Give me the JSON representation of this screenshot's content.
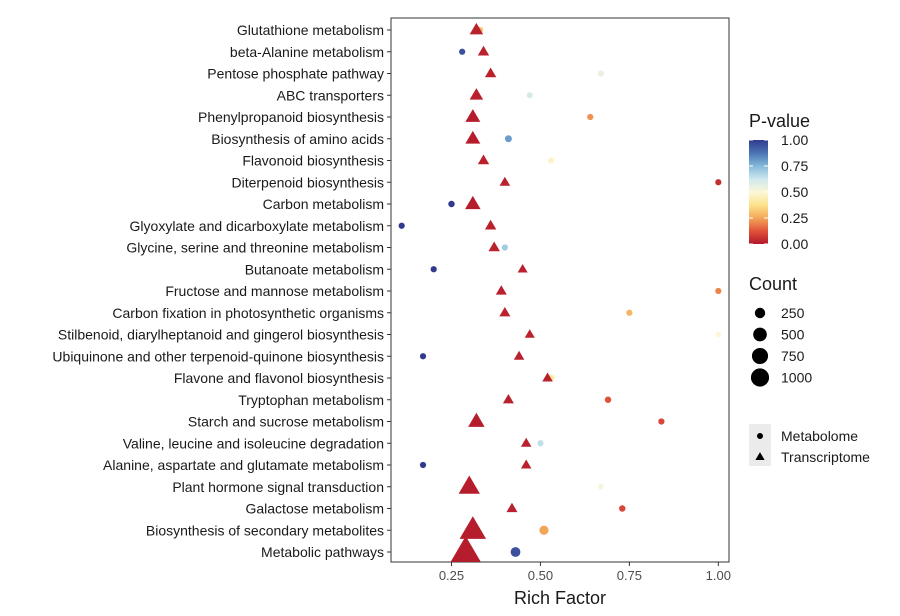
{
  "chart_data": {
    "type": "scatter",
    "xlabel": "Rich Factor",
    "ylabel": "",
    "xlim": [
      0.08,
      1.03
    ],
    "x_ticks": [
      0.25,
      0.5,
      0.75,
      1.0
    ],
    "x_tick_labels": [
      "0.25",
      "0.50",
      "0.75",
      "1.00"
    ],
    "grid": false,
    "categories": [
      "Glutathione metabolism",
      "beta-Alanine metabolism",
      "Pentose phosphate pathway",
      "ABC transporters",
      "Phenylpropanoid biosynthesis",
      "Biosynthesis of amino acids",
      "Flavonoid biosynthesis",
      "Diterpenoid biosynthesis",
      "Carbon metabolism",
      "Glyoxylate and dicarboxylate metabolism",
      "Glycine, serine and threonine metabolism",
      "Butanoate metabolism",
      "Fructose and mannose metabolism",
      "Carbon fixation in photosynthetic organisms",
      "Stilbenoid, diarylheptanoid and gingerol biosynthesis",
      "Ubiquinone and other terpenoid-quinone biosynthesis",
      "Flavone and flavonol biosynthesis",
      "Tryptophan metabolism",
      "Starch and sucrose metabolism",
      "Valine, leucine and isoleucine degradation",
      "Alanine, aspartate and glutamate metabolism",
      "Plant hormone signal transduction",
      "Galactose metabolism",
      "Biosynthesis of secondary metabolites",
      "Metabolic pathways"
    ],
    "series": [
      {
        "name": "Metabolome",
        "shape": "circle",
        "points": [
          {
            "category": "Glutathione metabolism",
            "x": 0.33,
            "p": 0.3,
            "count": 25
          },
          {
            "category": "beta-Alanine metabolism",
            "x": 0.28,
            "p": 0.95,
            "count": 25
          },
          {
            "category": "Pentose phosphate pathway",
            "x": 0.67,
            "p": 0.55,
            "count": 25
          },
          {
            "category": "ABC transporters",
            "x": 0.47,
            "p": 0.6,
            "count": 25
          },
          {
            "category": "Phenylpropanoid biosynthesis",
            "x": 0.64,
            "p": 0.22,
            "count": 25
          },
          {
            "category": "Biosynthesis of amino acids",
            "x": 0.41,
            "p": 0.8,
            "count": 40
          },
          {
            "category": "Flavonoid biosynthesis",
            "x": 0.53,
            "p": 0.48,
            "count": 25
          },
          {
            "category": "Diterpenoid biosynthesis",
            "x": 1.0,
            "p": 0.05,
            "count": 25
          },
          {
            "category": "Carbon metabolism",
            "x": 0.25,
            "p": 1.0,
            "count": 30
          },
          {
            "category": "Glyoxylate and dicarboxylate metabolism",
            "x": 0.11,
            "p": 1.0,
            "count": 25
          },
          {
            "category": "Glycine, serine and threonine metabolism",
            "x": 0.4,
            "p": 0.7,
            "count": 25
          },
          {
            "category": "Butanoate metabolism",
            "x": 0.2,
            "p": 1.0,
            "count": 25
          },
          {
            "category": "Fructose and mannose metabolism",
            "x": 1.0,
            "p": 0.2,
            "count": 25
          },
          {
            "category": "Carbon fixation in photosynthetic organisms",
            "x": 0.75,
            "p": 0.28,
            "count": 25
          },
          {
            "category": "Stilbenoid, diarylheptanoid and gingerol biosynthesis",
            "x": 1.0,
            "p": 0.5,
            "count": 15
          },
          {
            "category": "Ubiquinone and other terpenoid-quinone biosynthesis",
            "x": 0.17,
            "p": 1.0,
            "count": 25
          },
          {
            "category": "Flavone and flavonol biosynthesis",
            "x": 0.53,
            "p": 0.4,
            "count": 30
          },
          {
            "category": "Tryptophan metabolism",
            "x": 0.69,
            "p": 0.12,
            "count": 30
          },
          {
            "category": "Starch and sucrose metabolism",
            "x": 0.84,
            "p": 0.1,
            "count": 25
          },
          {
            "category": "Valine, leucine and isoleucine degradation",
            "x": 0.5,
            "p": 0.65,
            "count": 25
          },
          {
            "category": "Alanine, aspartate and glutamate metabolism",
            "x": 0.17,
            "p": 1.0,
            "count": 25
          },
          {
            "category": "Plant hormone signal transduction",
            "x": 0.67,
            "p": 0.52,
            "count": 15
          },
          {
            "category": "Galactose metabolism",
            "x": 0.73,
            "p": 0.1,
            "count": 30
          },
          {
            "category": "Biosynthesis of secondary metabolites",
            "x": 0.51,
            "p": 0.25,
            "count": 100
          },
          {
            "category": "Metabolic pathways",
            "x": 0.43,
            "p": 0.95,
            "count": 120
          }
        ]
      },
      {
        "name": "Transcriptome",
        "shape": "triangle",
        "points": [
          {
            "category": "Glutathione metabolism",
            "x": 0.32,
            "p": 0.02,
            "count": 150
          },
          {
            "category": "beta-Alanine metabolism",
            "x": 0.34,
            "p": 0.02,
            "count": 90
          },
          {
            "category": "Pentose phosphate pathway",
            "x": 0.36,
            "p": 0.02,
            "count": 90
          },
          {
            "category": "ABC transporters",
            "x": 0.32,
            "p": 0.02,
            "count": 150
          },
          {
            "category": "Phenylpropanoid biosynthesis",
            "x": 0.31,
            "p": 0.01,
            "count": 200
          },
          {
            "category": "Biosynthesis of amino acids",
            "x": 0.31,
            "p": 0.01,
            "count": 200
          },
          {
            "category": "Flavonoid biosynthesis",
            "x": 0.34,
            "p": 0.02,
            "count": 90
          },
          {
            "category": "Diterpenoid biosynthesis",
            "x": 0.4,
            "p": 0.02,
            "count": 70
          },
          {
            "category": "Carbon metabolism",
            "x": 0.31,
            "p": 0.01,
            "count": 220
          },
          {
            "category": "Glyoxylate and dicarboxylate metabolism",
            "x": 0.36,
            "p": 0.02,
            "count": 90
          },
          {
            "category": "Glycine, serine and threonine metabolism",
            "x": 0.37,
            "p": 0.02,
            "count": 90
          },
          {
            "category": "Butanoate metabolism",
            "x": 0.45,
            "p": 0.02,
            "count": 60
          },
          {
            "category": "Fructose and mannose metabolism",
            "x": 0.39,
            "p": 0.02,
            "count": 80
          },
          {
            "category": "Carbon fixation in photosynthetic organisms",
            "x": 0.4,
            "p": 0.02,
            "count": 80
          },
          {
            "category": "Stilbenoid, diarylheptanoid and gingerol biosynthesis",
            "x": 0.47,
            "p": 0.02,
            "count": 60
          },
          {
            "category": "Ubiquinone and other terpenoid-quinone biosynthesis",
            "x": 0.44,
            "p": 0.02,
            "count": 70
          },
          {
            "category": "Flavone and flavonol biosynthesis",
            "x": 0.52,
            "p": 0.02,
            "count": 70
          },
          {
            "category": "Tryptophan metabolism",
            "x": 0.41,
            "p": 0.02,
            "count": 80
          },
          {
            "category": "Starch and sucrose metabolism",
            "x": 0.32,
            "p": 0.01,
            "count": 260
          },
          {
            "category": "Valine, leucine and isoleucine degradation",
            "x": 0.46,
            "p": 0.02,
            "count": 70
          },
          {
            "category": "Alanine, aspartate and glutamate metabolism",
            "x": 0.46,
            "p": 0.02,
            "count": 70
          },
          {
            "category": "Plant hormone signal transduction",
            "x": 0.3,
            "p": 0.01,
            "count": 500
          },
          {
            "category": "Galactose metabolism",
            "x": 0.42,
            "p": 0.02,
            "count": 80
          },
          {
            "category": "Biosynthesis of secondary metabolites",
            "x": 0.31,
            "p": 0.01,
            "count": 850
          },
          {
            "category": "Metabolic pathways",
            "x": 0.29,
            "p": 0.01,
            "count": 1150
          }
        ]
      }
    ],
    "legend_color": {
      "title": "P-value",
      "ticks": [
        1.0,
        0.75,
        0.5,
        0.25,
        0.0
      ],
      "tick_labels": [
        "1.00",
        "0.75",
        "0.50",
        "0.25",
        "0.00"
      ],
      "range": [
        0,
        1
      ],
      "colors": [
        "#b2182b",
        "#e0533a",
        "#f4a658",
        "#fde38c",
        "#fbf7d7",
        "#cfe8f0",
        "#83b9d8",
        "#4a74b4",
        "#313a8f"
      ]
    },
    "legend_size": {
      "title": "Count",
      "values": [
        250,
        500,
        750,
        1000
      ],
      "labels": [
        "250",
        "500",
        "750",
        "1000"
      ]
    },
    "legend_shape": {
      "items": [
        {
          "label": "Metabolome",
          "shape": "circle"
        },
        {
          "label": "Transcriptome",
          "shape": "triangle"
        }
      ]
    },
    "legend_position": "right"
  }
}
